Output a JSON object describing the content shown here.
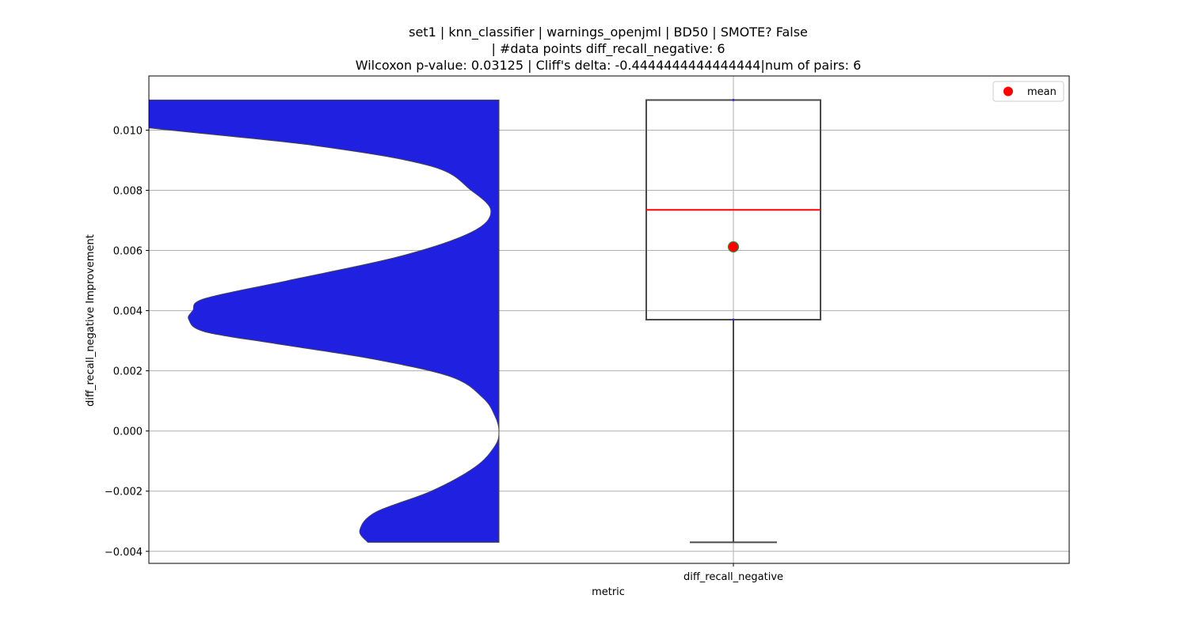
{
  "chart_data": {
    "type": "violin+box",
    "title": [
      "set1 | knn_classifier | warnings_openjml | BD50 | SMOTE? False",
      "| #data points diff_recall_negative: 6",
      "Wilcoxon p-value: 0.03125 | Cliff's delta: -0.4444444444444444|num of pairs: 6"
    ],
    "xlabel": "metric",
    "ylabel": "diff_recall_negative Improvement",
    "category": "diff_recall_negative",
    "ylim": [
      -0.0044,
      0.0118
    ],
    "yticks": [
      -0.004,
      -0.002,
      0.0,
      0.002,
      0.004,
      0.006,
      0.008,
      0.01
    ],
    "ytick_labels": [
      "−0.004",
      "−0.002",
      "0.000",
      "0.002",
      "0.004",
      "0.006",
      "0.008",
      "0.010"
    ],
    "grid": true,
    "legend": {
      "entries": [
        "mean"
      ],
      "placement": "top-right"
    },
    "box": {
      "min": -0.0037,
      "q1": 0.0037,
      "median": 0.00735,
      "q3": 0.011,
      "max": 0.011,
      "mean": 0.00612
    },
    "violin_density": [
      [
        0.011,
        1.0
      ],
      [
        0.0103,
        1.0
      ],
      [
        0.0095,
        0.47
      ],
      [
        0.0088,
        0.17
      ],
      [
        0.008,
        0.07
      ],
      [
        0.0073,
        0.02
      ],
      [
        0.0066,
        0.07
      ],
      [
        0.0058,
        0.25
      ],
      [
        0.005,
        0.53
      ],
      [
        0.0044,
        0.74
      ],
      [
        0.004,
        0.77
      ],
      [
        0.0037,
        0.78
      ],
      [
        0.0033,
        0.74
      ],
      [
        0.0029,
        0.56
      ],
      [
        0.0024,
        0.32
      ],
      [
        0.0018,
        0.12
      ],
      [
        0.0011,
        0.04
      ],
      [
        0.0005,
        0.01
      ],
      [
        0.0,
        0.0
      ],
      [
        -0.0005,
        0.01
      ],
      [
        -0.0012,
        0.06
      ],
      [
        -0.002,
        0.17
      ],
      [
        -0.0027,
        0.31
      ],
      [
        -0.0033,
        0.35
      ],
      [
        -0.0037,
        0.33
      ]
    ],
    "colors": {
      "violin_fill": "#2020e0",
      "violin_edge": "#444444",
      "box_edge": "#4a4a4a",
      "median": "#ff0000",
      "mean_marker": "#ff0000",
      "mean_edge": "#3a8a3a",
      "grid": "#b0b0b0"
    }
  }
}
